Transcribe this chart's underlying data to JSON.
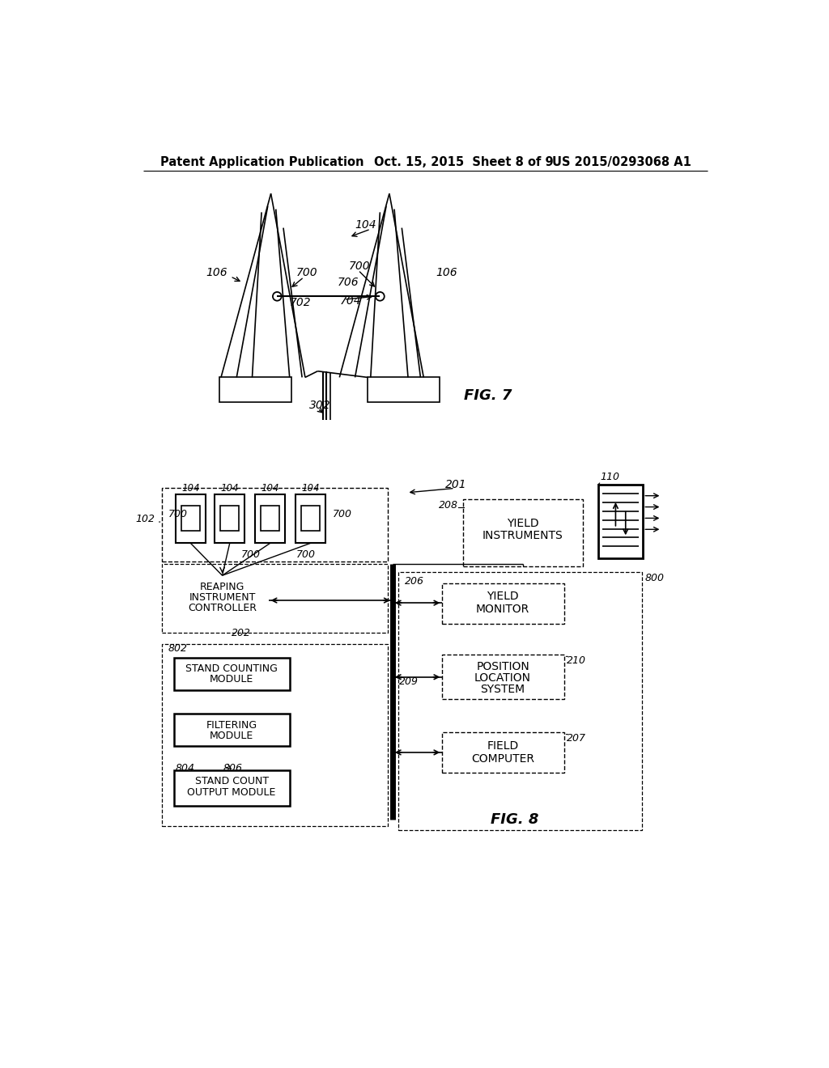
{
  "header_left": "Patent Application Publication",
  "header_center": "Oct. 15, 2015  Sheet 8 of 9",
  "header_right": "US 2015/0293068 A1",
  "fig7_label": "FIG. 7",
  "fig8_label": "FIG. 8",
  "bg_color": "#ffffff"
}
